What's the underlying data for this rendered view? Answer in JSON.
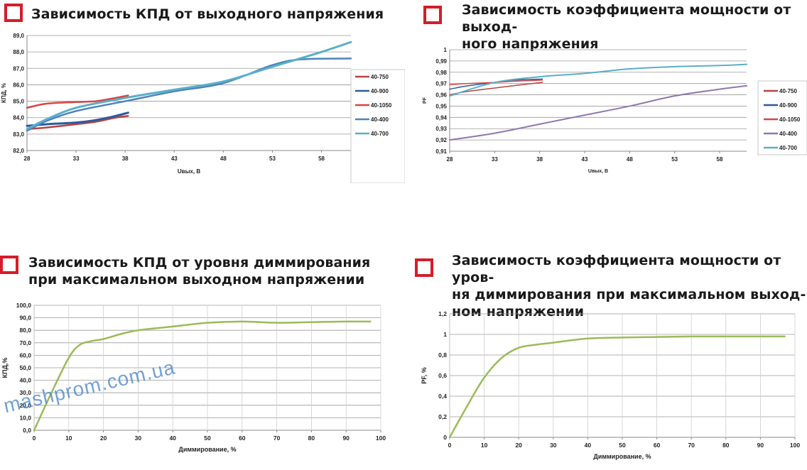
{
  "titles": {
    "c1": [
      "Зависимость КПД от выходного напряжения"
    ],
    "c2": [
      "Зависимость коэффициента мощности от выход-",
      "ного напряжения"
    ],
    "c3": [
      "Зависимость КПД от уровня диммирования",
      "при максимальном выходном напряжении"
    ],
    "c4": [
      "Зависимость коэффициента мощности от уров-",
      "ня диммирования при максимальном выход-",
      "ном напряжении"
    ]
  },
  "watermark": "mashprom.com.ua",
  "colors": {
    "accent_box": "#d31e2a",
    "grid": "#9a9a9a",
    "axis": "#888888",
    "series_40_750": "#b8433f",
    "series_40_900": "#2c5aa0",
    "series_40_1050": "#d94541",
    "series_40_400": "#8e78b0",
    "series_40_400_kpd": "#4f81bd",
    "series_40_700": "#5aafc8",
    "dimming": "#9bbb59"
  },
  "chart_data": [
    {
      "type": "line",
      "title": "Зависимость КПД от выходного напряжения",
      "xlabel": "Uвых, В",
      "ylabel": "КПД, %",
      "xlim": [
        28,
        61
      ],
      "ylim": [
        82.0,
        89.0
      ],
      "xticks": [
        28,
        33,
        38,
        43,
        48,
        53,
        58
      ],
      "xtick_labels": [
        "28",
        "33",
        "38",
        "43",
        "48",
        "53",
        "58"
      ],
      "yticks": [
        82,
        83,
        84,
        85,
        86,
        87,
        88,
        89
      ],
      "ytick_labels": [
        "82,0",
        "83,0",
        "84,0",
        "85,0",
        "86,0",
        "87,0",
        "88,0",
        "89,0"
      ],
      "grid": true,
      "legend": "right",
      "series": [
        {
          "name": "40-750",
          "color": "#b8433f",
          "width": 2.5,
          "x": [
            28,
            30,
            33,
            35,
            37,
            38.3
          ],
          "y": [
            83.3,
            83.4,
            83.6,
            83.75,
            84.0,
            84.1
          ]
        },
        {
          "name": "40-900",
          "color": "#2c5aa0",
          "width": 3,
          "x": [
            28,
            30,
            33,
            35,
            37,
            38.3
          ],
          "y": [
            83.5,
            83.6,
            83.7,
            83.85,
            84.1,
            84.3
          ]
        },
        {
          "name": "40-1050",
          "color": "#d94541",
          "width": 2.5,
          "x": [
            28,
            30,
            33,
            35,
            37,
            38.3
          ],
          "y": [
            84.6,
            84.85,
            84.95,
            85.0,
            85.2,
            85.35
          ]
        },
        {
          "name": "40-400",
          "color": "#4f81bd",
          "width": 2.5,
          "x": [
            28,
            30,
            33,
            38,
            43,
            48,
            53,
            56,
            61
          ],
          "y": [
            83.2,
            83.8,
            84.4,
            85.0,
            85.6,
            86.1,
            87.2,
            87.55,
            87.6
          ]
        },
        {
          "name": "40-700",
          "color": "#5aafc8",
          "width": 3,
          "x": [
            28,
            30,
            33,
            38,
            43,
            48,
            53,
            58,
            61
          ],
          "y": [
            83.3,
            83.9,
            84.6,
            85.2,
            85.7,
            86.2,
            87.1,
            88.0,
            88.6
          ]
        }
      ]
    },
    {
      "type": "line",
      "title": "Зависимость коэффициента мощности от выходного напряжения",
      "xlabel": "Uвых, В",
      "ylabel": "PF",
      "xlim": [
        28,
        61
      ],
      "ylim": [
        0.91,
        1.0
      ],
      "xticks": [
        28,
        33,
        38,
        43,
        48,
        53,
        58
      ],
      "xtick_labels": [
        "28",
        "33",
        "38",
        "43",
        "48",
        "53",
        "58"
      ],
      "yticks": [
        0.91,
        0.92,
        0.93,
        0.94,
        0.95,
        0.96,
        0.97,
        0.98,
        0.99,
        1.0
      ],
      "ytick_labels": [
        "0,91",
        "0,92",
        "0,93",
        "0,94",
        "0,95",
        "0,96",
        "0,97",
        "0,98",
        "0,99",
        "1"
      ],
      "grid": true,
      "legend": "right",
      "series": [
        {
          "name": "40-750",
          "color": "#b8433f",
          "width": 1.5,
          "x": [
            28,
            30,
            33,
            35,
            38.3
          ],
          "y": [
            0.96,
            0.963,
            0.966,
            0.968,
            0.971
          ]
        },
        {
          "name": "40-900",
          "color": "#2c5aa0",
          "width": 1.5,
          "x": [
            28,
            30,
            33,
            35,
            38.3
          ],
          "y": [
            0.965,
            0.968,
            0.971,
            0.973,
            0.974
          ]
        },
        {
          "name": "40-1050",
          "color": "#d94541",
          "width": 1.5,
          "x": [
            28,
            30,
            33,
            35,
            38.3
          ],
          "y": [
            0.969,
            0.97,
            0.971,
            0.972,
            0.973
          ]
        },
        {
          "name": "40-400",
          "color": "#8e78b0",
          "width": 2,
          "x": [
            28,
            33,
            38,
            43,
            48,
            53,
            58,
            61
          ],
          "y": [
            0.92,
            0.926,
            0.934,
            0.942,
            0.95,
            0.959,
            0.965,
            0.968
          ]
        },
        {
          "name": "40-700",
          "color": "#5aafc8",
          "width": 2,
          "x": [
            28,
            33,
            38,
            43,
            48,
            53,
            58,
            61
          ],
          "y": [
            0.959,
            0.971,
            0.976,
            0.979,
            0.983,
            0.985,
            0.986,
            0.987
          ]
        }
      ]
    },
    {
      "type": "line",
      "xlabel": "Диммирование, %",
      "ylabel": "КПД,%",
      "xlim": [
        0,
        100
      ],
      "ylim": [
        0,
        100
      ],
      "xticks": [
        0,
        10,
        20,
        30,
        40,
        50,
        60,
        70,
        80,
        90,
        100
      ],
      "xtick_labels": [
        "0",
        "10",
        "20",
        "30",
        "40",
        "50",
        "60",
        "70",
        "80",
        "90",
        "100"
      ],
      "yticks": [
        0,
        10,
        20,
        30,
        40,
        50,
        60,
        70,
        80,
        90,
        100
      ],
      "ytick_labels": [
        "0,0",
        "10,0",
        "20,0",
        "30,0",
        "40,0",
        "50,0",
        "60,0",
        "70,0",
        "80,0",
        "90,0",
        "100,0"
      ],
      "grid": true,
      "series": [
        {
          "color": "#9bbb59",
          "width": 2.5,
          "x": [
            0,
            5,
            10,
            13,
            16,
            20,
            25,
            30,
            40,
            50,
            60,
            70,
            80,
            90,
            97
          ],
          "y": [
            0,
            30,
            58,
            68,
            71,
            73,
            77,
            80,
            83,
            86,
            87,
            86,
            86.5,
            87,
            87
          ]
        }
      ]
    },
    {
      "type": "line",
      "xlabel": "Диммирование, %",
      "ylabel": "PF, %",
      "xlim": [
        0,
        100
      ],
      "ylim": [
        0,
        1.2
      ],
      "xticks": [
        0,
        10,
        20,
        30,
        40,
        50,
        60,
        70,
        80,
        90,
        100
      ],
      "xtick_labels": [
        "0",
        "10",
        "20",
        "30",
        "40",
        "50",
        "60",
        "70",
        "80",
        "90",
        "100"
      ],
      "yticks": [
        0,
        0.2,
        0.4,
        0.6,
        0.8,
        1.0,
        1.2
      ],
      "ytick_labels": [
        "0",
        "0,2",
        "0,4",
        "0,6",
        "0,8",
        "1",
        "1,2"
      ],
      "grid": true,
      "series": [
        {
          "color": "#9bbb59",
          "width": 2.5,
          "x": [
            0,
            5,
            10,
            15,
            20,
            25,
            30,
            40,
            50,
            60,
            70,
            80,
            90,
            97
          ],
          "y": [
            0,
            0.3,
            0.58,
            0.77,
            0.87,
            0.9,
            0.92,
            0.96,
            0.97,
            0.975,
            0.98,
            0.98,
            0.98,
            0.98
          ]
        }
      ]
    }
  ]
}
